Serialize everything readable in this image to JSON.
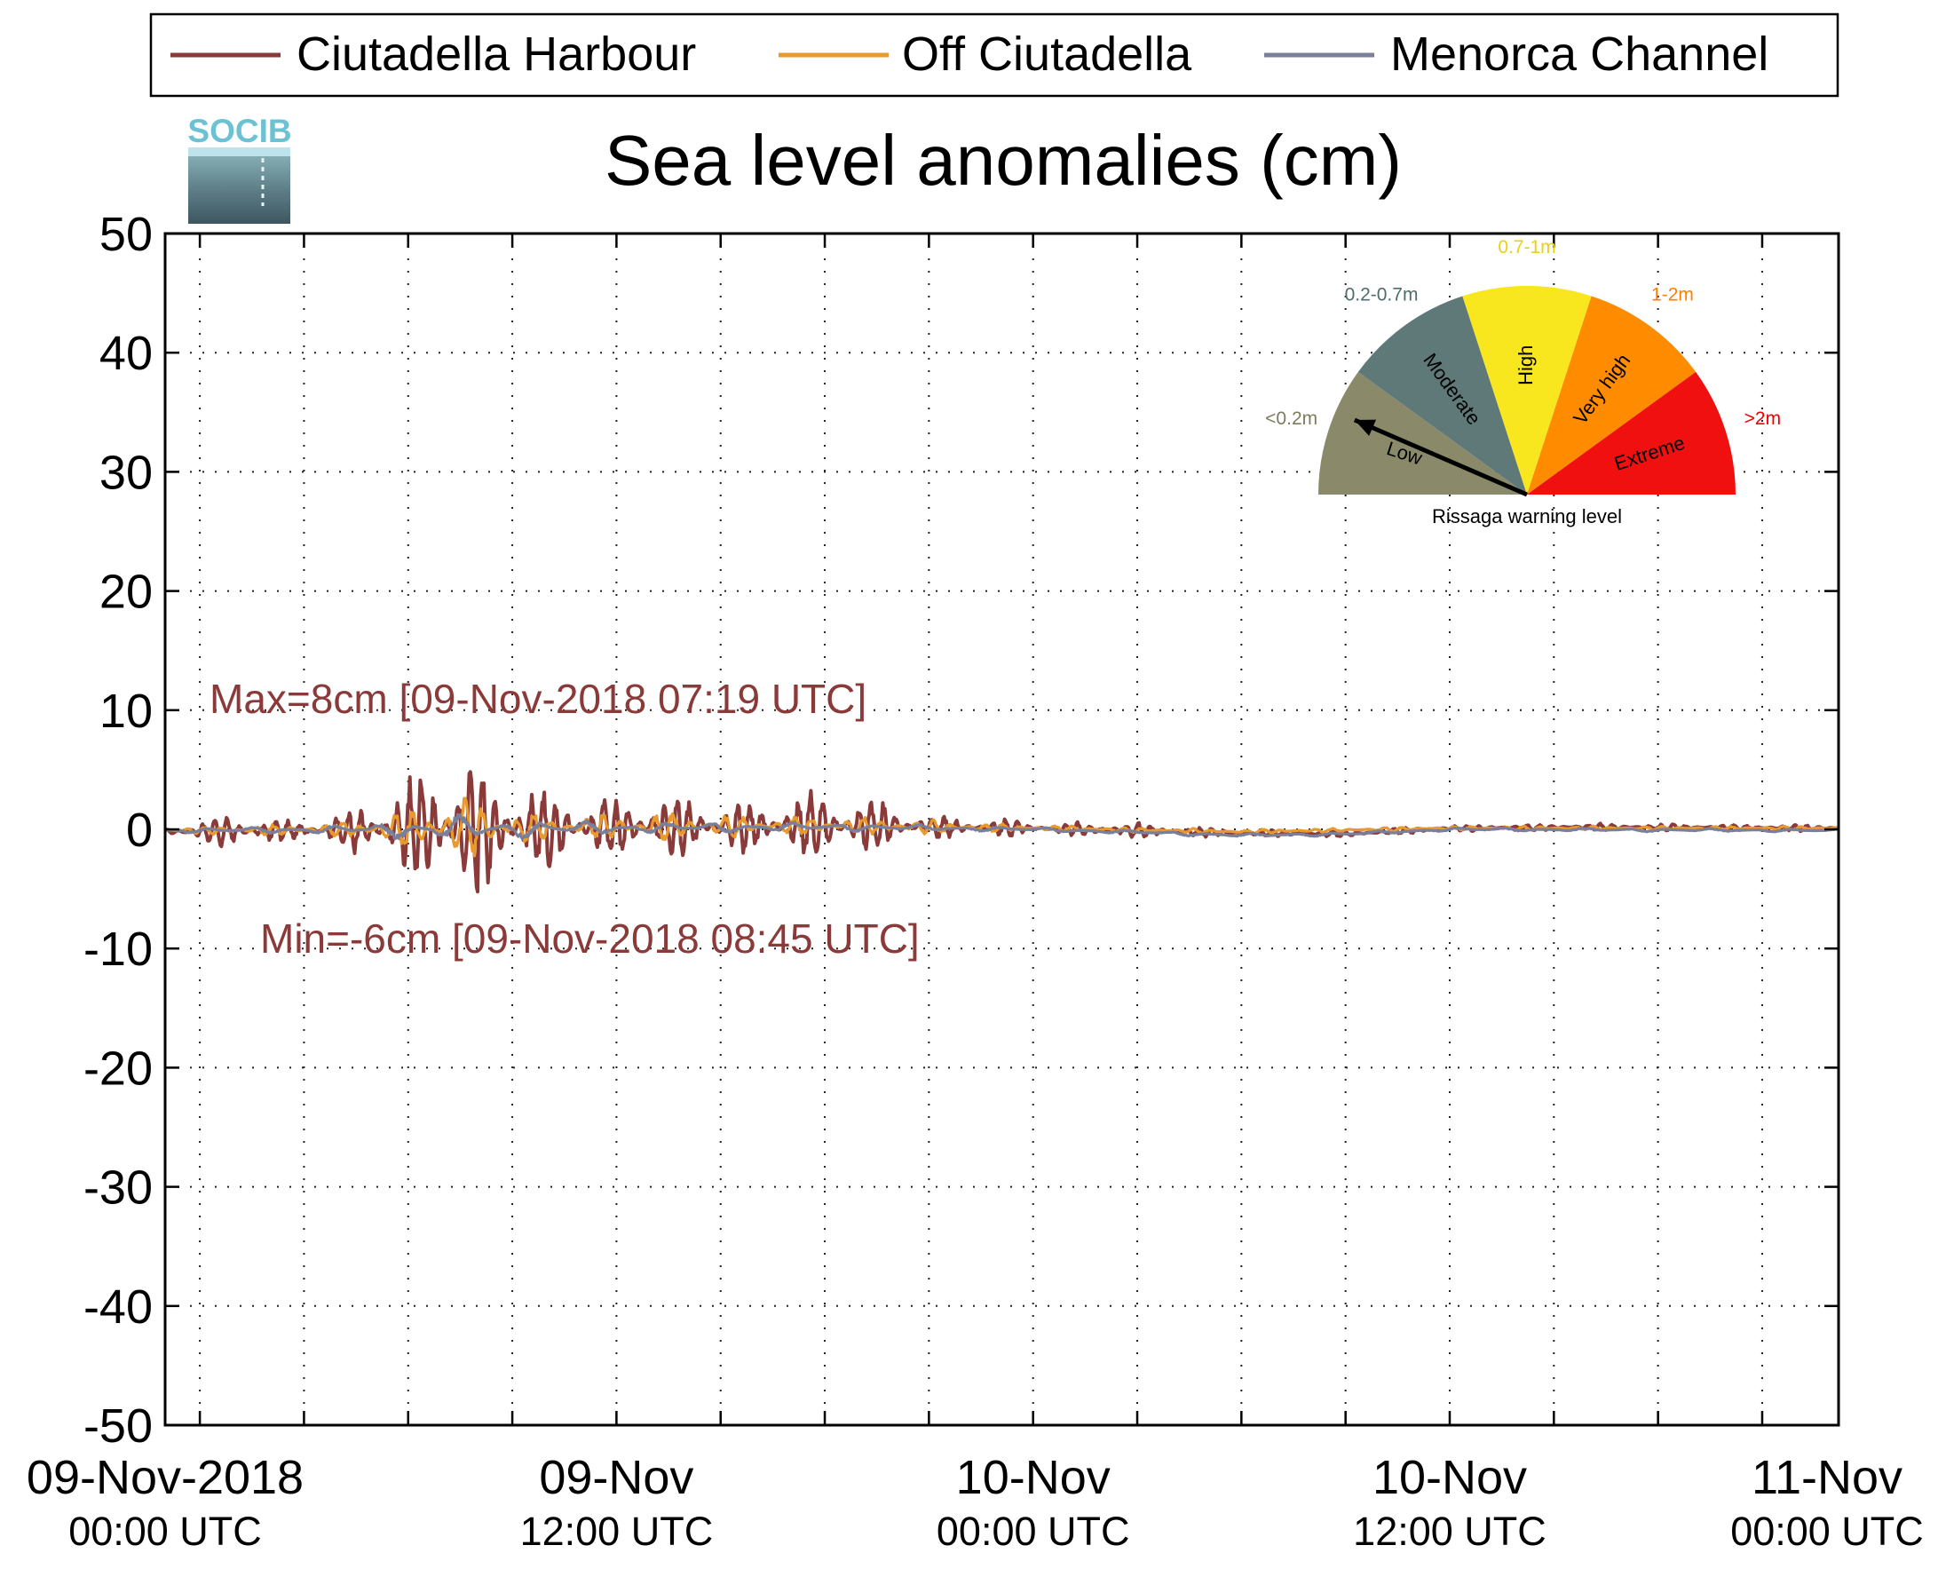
{
  "chart_data": {
    "type": "line",
    "title": "Sea level anomalies (cm)",
    "logo_text": "SOCIB",
    "ylim": [
      -50,
      50
    ],
    "yticks": [
      50,
      40,
      30,
      20,
      10,
      0,
      -10,
      -20,
      -30,
      -40,
      -50
    ],
    "ytick_labels": [
      "50",
      "40",
      "30",
      "20",
      "10",
      "0",
      "-10",
      "-20",
      "-30",
      "-40",
      "-50"
    ],
    "x_unit": "hours since 09-Nov-2018 00:00 UTC",
    "xlim": [
      -1,
      47.2
    ],
    "grid": true,
    "legend_position": "top",
    "x_ticks_hours": [
      0,
      3,
      6,
      9,
      12,
      15,
      18,
      21,
      24,
      27,
      30,
      33,
      36,
      39,
      42,
      45
    ],
    "x_labels": [
      {
        "hour": 0,
        "line1": "09-Nov-2018",
        "line2": "00:00 UTC"
      },
      {
        "hour": 12,
        "line1": "09-Nov",
        "line2": "12:00 UTC"
      },
      {
        "hour": 24,
        "line1": "10-Nov",
        "line2": "00:00 UTC"
      },
      {
        "hour": 36,
        "line1": "10-Nov",
        "line2": "12:00 UTC"
      },
      {
        "hour": 47.2,
        "line1": "11-Nov",
        "line2": "00:00 UTC"
      }
    ],
    "series": [
      {
        "name": "Ciutadella Harbour",
        "color": "#8b3a3a",
        "envelope": [
          [
            -1,
            0.6
          ],
          [
            0,
            1.0
          ],
          [
            1,
            1.8
          ],
          [
            2,
            1.2
          ],
          [
            3,
            1.0
          ],
          [
            4,
            1.6
          ],
          [
            5,
            2.8
          ],
          [
            6,
            4.8
          ],
          [
            7,
            7.2
          ],
          [
            8,
            6.5
          ],
          [
            9,
            5.8
          ],
          [
            10,
            3.8
          ],
          [
            11,
            3.2
          ],
          [
            12,
            2.8
          ],
          [
            13,
            3.6
          ],
          [
            14,
            2.8
          ],
          [
            15,
            2.2
          ],
          [
            16,
            2.4
          ],
          [
            17,
            3.0
          ],
          [
            18,
            3.2
          ],
          [
            19,
            3.0
          ],
          [
            20,
            2.0
          ],
          [
            21,
            1.2
          ],
          [
            22,
            0.9
          ],
          [
            23,
            0.8
          ],
          [
            24,
            0.7
          ],
          [
            25,
            0.6
          ],
          [
            26,
            0.8
          ],
          [
            27,
            0.7
          ],
          [
            28,
            0.5
          ],
          [
            29,
            0.4
          ],
          [
            30,
            0.3
          ],
          [
            32,
            0.3
          ],
          [
            34,
            0.3
          ],
          [
            36,
            0.3
          ],
          [
            38,
            0.3
          ],
          [
            40,
            0.3
          ],
          [
            42,
            0.3
          ],
          [
            44,
            0.3
          ],
          [
            46,
            0.3
          ],
          [
            47.2,
            0.3
          ]
        ],
        "baseline": [
          [
            -1,
            -0.2
          ],
          [
            6,
            0
          ],
          [
            12,
            0.2
          ],
          [
            18,
            0.3
          ],
          [
            24,
            0.1
          ],
          [
            30,
            -0.3
          ],
          [
            33,
            -0.4
          ],
          [
            36,
            0.1
          ],
          [
            40,
            0.2
          ],
          [
            47.2,
            0.1
          ]
        ],
        "period_hours": 0.35
      },
      {
        "name": "Off Ciutadella",
        "color": "#e89a2e",
        "envelope": [
          [
            -1,
            0.3
          ],
          [
            4,
            0.6
          ],
          [
            6,
            2.0
          ],
          [
            7,
            3.0
          ],
          [
            8,
            2.6
          ],
          [
            9,
            1.8
          ],
          [
            10,
            1.2
          ],
          [
            12,
            1.2
          ],
          [
            14,
            1.4
          ],
          [
            16,
            0.9
          ],
          [
            18,
            0.9
          ],
          [
            20,
            0.8
          ],
          [
            22,
            0.5
          ],
          [
            24,
            0.3
          ],
          [
            30,
            0.2
          ],
          [
            47.2,
            0.2
          ]
        ],
        "baseline": [
          [
            -1,
            -0.1
          ],
          [
            6,
            0
          ],
          [
            12,
            0.2
          ],
          [
            18,
            0.3
          ],
          [
            24,
            0.1
          ],
          [
            30,
            -0.2
          ],
          [
            36,
            0.1
          ],
          [
            47.2,
            0.1
          ]
        ],
        "period_hours": 0.5
      },
      {
        "name": "Menorca Channel",
        "color": "#7a7f9a",
        "envelope": [
          [
            -1,
            0.2
          ],
          [
            4,
            0.4
          ],
          [
            6,
            1.0
          ],
          [
            7,
            1.4
          ],
          [
            9,
            1.0
          ],
          [
            12,
            0.6
          ],
          [
            18,
            0.4
          ],
          [
            24,
            0.2
          ],
          [
            47.2,
            0.15
          ]
        ],
        "baseline": [
          [
            -1,
            -0.1
          ],
          [
            6,
            0
          ],
          [
            12,
            0.1
          ],
          [
            18,
            0.2
          ],
          [
            24,
            0.0
          ],
          [
            30,
            -0.5
          ],
          [
            33,
            -0.4
          ],
          [
            36,
            0.0
          ],
          [
            47.2,
            -0.1
          ]
        ],
        "period_hours": 1.2
      }
    ],
    "annotations": {
      "max": {
        "text": "Max=8cm [09-Nov-2018 07:19 UTC]",
        "value": 8,
        "hour": 7.32
      },
      "min": {
        "text": "Min=-6cm [09-Nov-2018 08:45 UTC]",
        "value": -6,
        "hour": 8.75
      }
    }
  },
  "gauge": {
    "title": "Rissaga warning level",
    "needle_level": "Low",
    "segments": [
      {
        "label": "Low",
        "range": "<0.2m",
        "color": "#8a8a6a",
        "range_color": "#7d7d5e"
      },
      {
        "label": "Moderate",
        "range": "0.2-0.7m",
        "color": "#5f7878",
        "range_color": "#4f6d6d"
      },
      {
        "label": "High",
        "range": "0.7-1m",
        "color": "#f8e61e",
        "range_color": "#e8d20e"
      },
      {
        "label": "Very high",
        "range": "1-2m",
        "color": "#ff8c00",
        "range_color": "#ff8000"
      },
      {
        "label": "Extreme",
        "range": ">2m",
        "color": "#f01010",
        "range_color": "#ee0000"
      }
    ]
  }
}
